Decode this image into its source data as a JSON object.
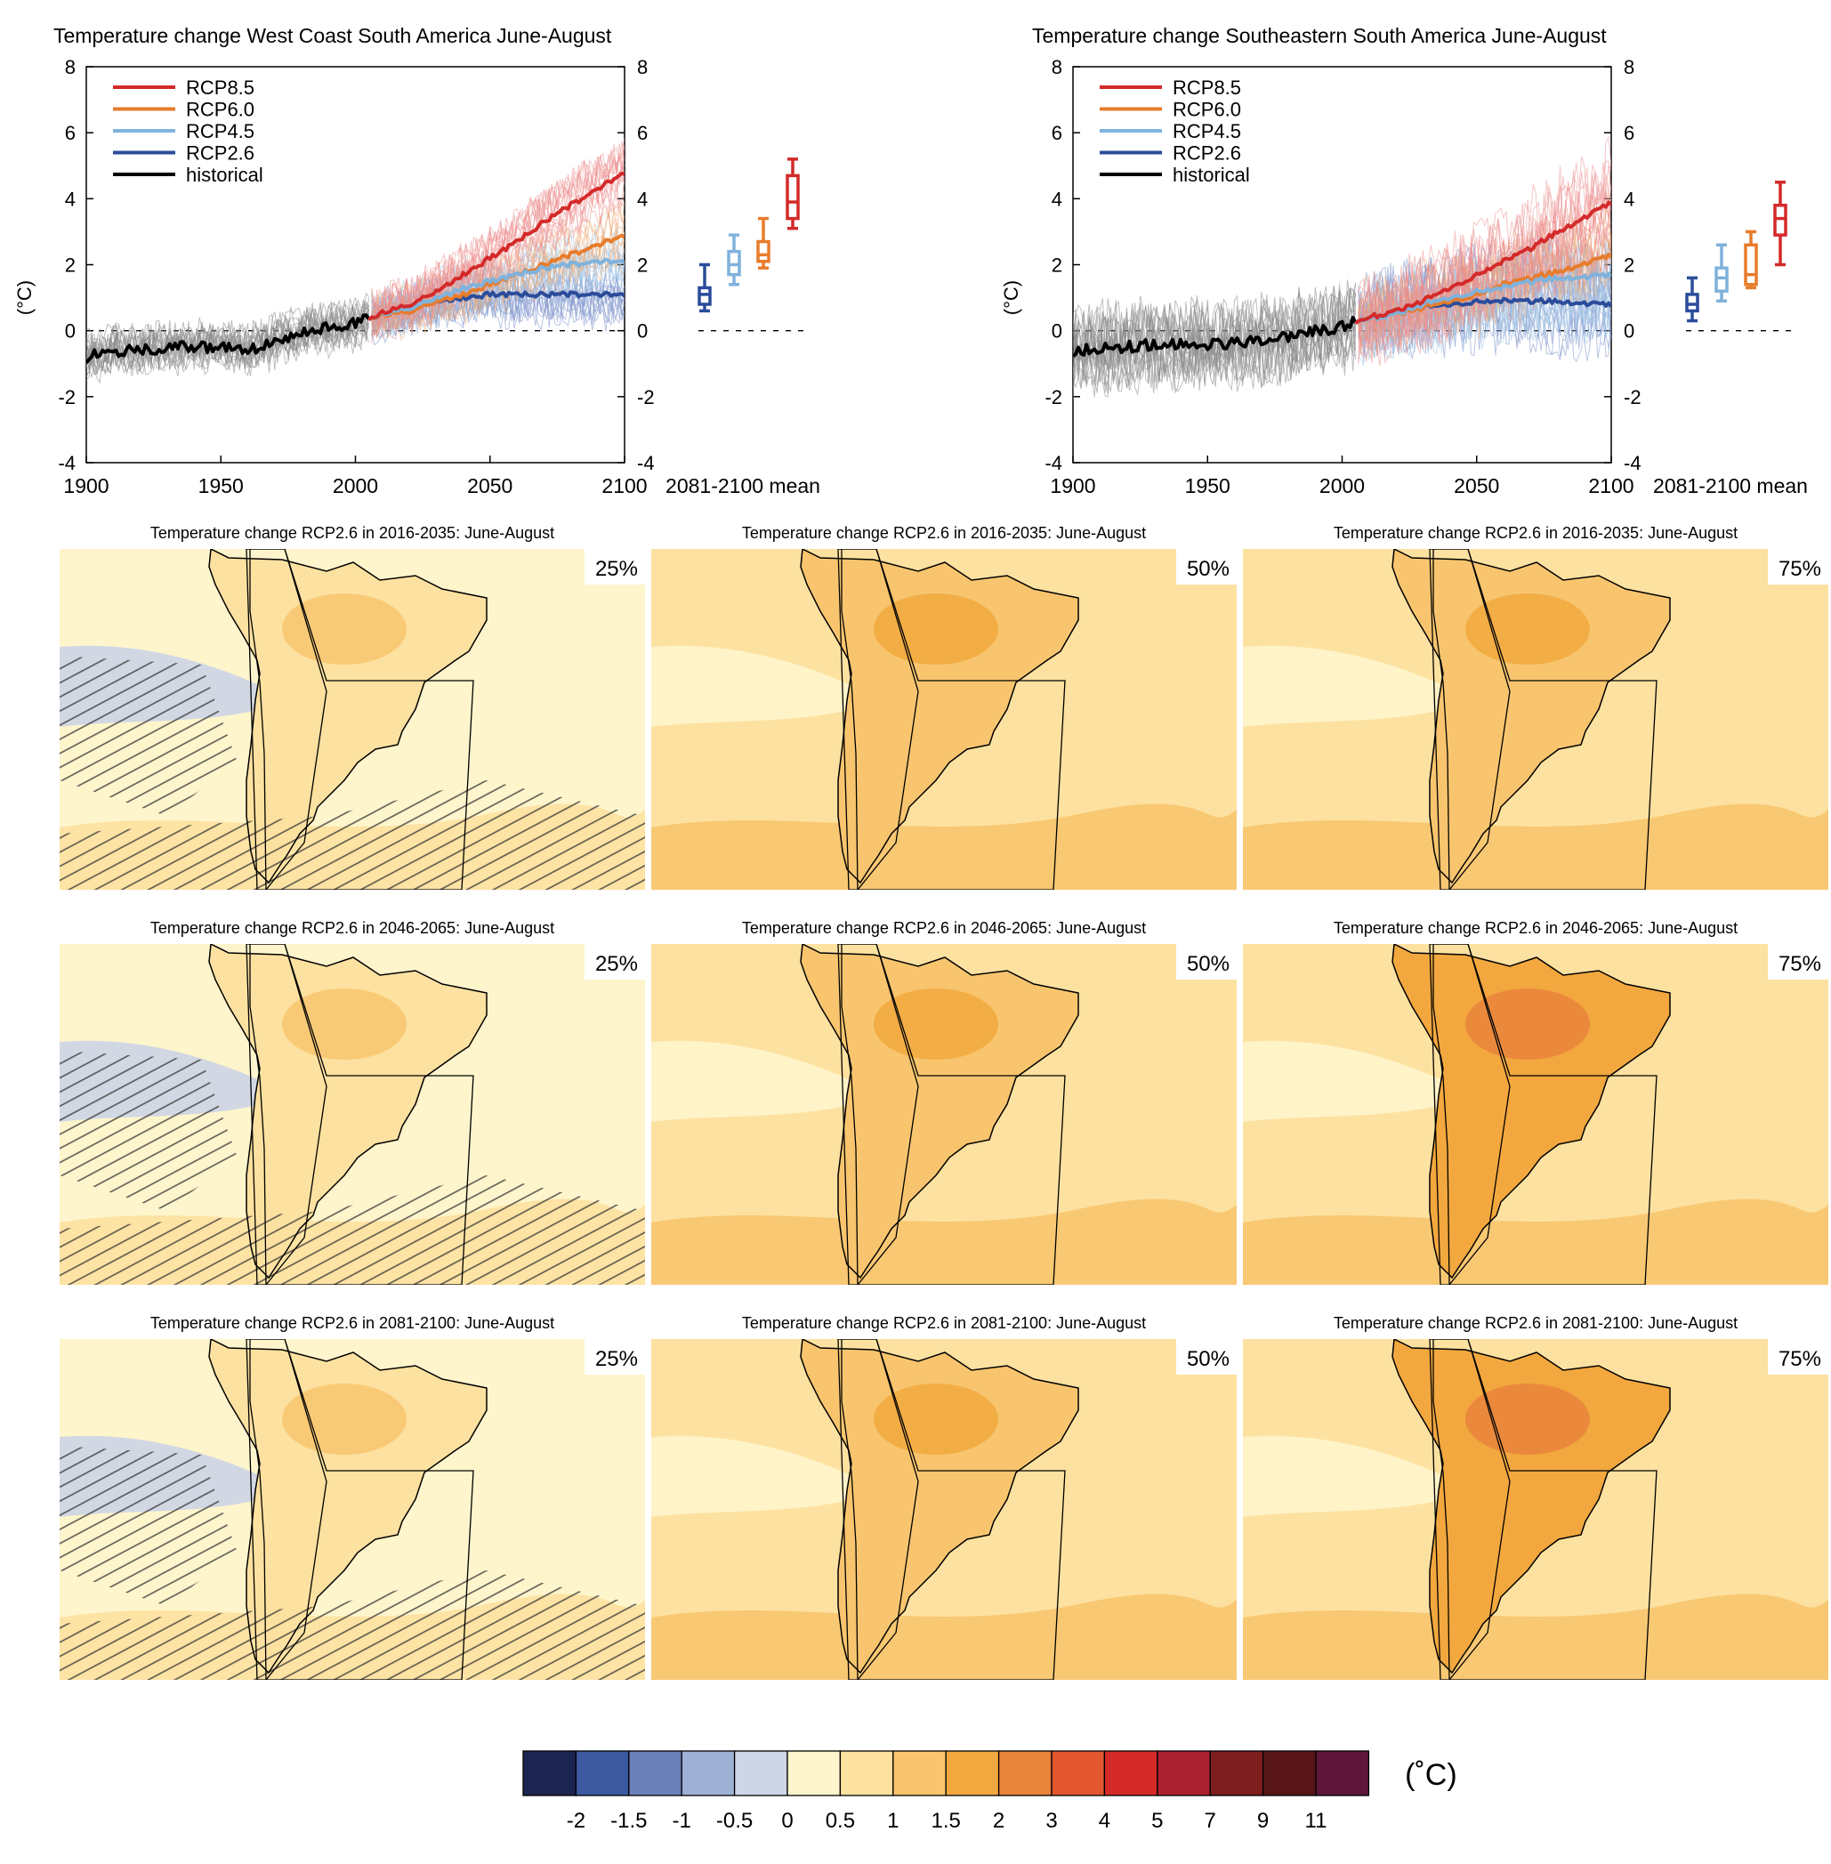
{
  "chart_data": [
    {
      "type": "line",
      "title": "Temperature change West Coast South America June-August",
      "ylabel": "(°C)",
      "xlim": [
        1900,
        2100
      ],
      "ylim": [
        -4,
        8
      ],
      "xticks": [
        "1900",
        "1950",
        "2000",
        "2050",
        "2100"
      ],
      "yticks": [
        "-4",
        "-2",
        "0",
        "2",
        "4",
        "6",
        "8"
      ],
      "legend_position": "top-left",
      "legend": [
        "RCP8.5",
        "RCP6.0",
        "RCP4.5",
        "RCP2.6",
        "historical"
      ],
      "series": [
        {
          "name": "historical",
          "color": "#000000",
          "x": [
            1900,
            1910,
            1920,
            1930,
            1940,
            1950,
            1960,
            1970,
            1980,
            1990,
            2000,
            2005
          ],
          "y": [
            -0.8,
            -0.6,
            -0.6,
            -0.5,
            -0.5,
            -0.5,
            -0.6,
            -0.3,
            -0.1,
            0.1,
            0.2,
            0.4
          ]
        },
        {
          "name": "RCP8.5",
          "color": "#d42a2a",
          "x": [
            2005,
            2020,
            2030,
            2040,
            2050,
            2060,
            2070,
            2080,
            2090,
            2100
          ],
          "y": [
            0.4,
            0.8,
            1.2,
            1.7,
            2.2,
            2.7,
            3.3,
            3.8,
            4.3,
            4.8
          ]
        },
        {
          "name": "RCP6.0",
          "color": "#e77c2c",
          "x": [
            2005,
            2020,
            2030,
            2040,
            2050,
            2060,
            2070,
            2080,
            2090,
            2100
          ],
          "y": [
            0.4,
            0.6,
            0.9,
            1.1,
            1.4,
            1.7,
            2.0,
            2.3,
            2.6,
            2.9
          ]
        },
        {
          "name": "RCP4.5",
          "color": "#7fb2dc",
          "x": [
            2005,
            2020,
            2030,
            2040,
            2050,
            2060,
            2070,
            2080,
            2090,
            2100
          ],
          "y": [
            0.4,
            0.7,
            1.0,
            1.3,
            1.5,
            1.7,
            1.9,
            2.0,
            2.1,
            2.1
          ]
        },
        {
          "name": "RCP2.6",
          "color": "#2b4c9a",
          "x": [
            2005,
            2020,
            2030,
            2040,
            2050,
            2060,
            2070,
            2080,
            2090,
            2100
          ],
          "y": [
            0.4,
            0.7,
            0.9,
            1.0,
            1.1,
            1.1,
            1.1,
            1.1,
            1.1,
            1.1
          ]
        }
      ],
      "boxplot_label": "2081-2100 mean",
      "boxplots": [
        {
          "name": "RCP2.6",
          "color": "#2b4c9a",
          "min": 0.6,
          "q1": 0.8,
          "median": 1.1,
          "q3": 1.3,
          "max": 2.0
        },
        {
          "name": "RCP4.5",
          "color": "#7fb2dc",
          "min": 1.4,
          "q1": 1.7,
          "median": 2.0,
          "q3": 2.4,
          "max": 2.9
        },
        {
          "name": "RCP6.0",
          "color": "#e77c2c",
          "min": 1.9,
          "q1": 2.1,
          "median": 2.3,
          "q3": 2.7,
          "max": 3.4
        },
        {
          "name": "RCP8.5",
          "color": "#d42a2a",
          "min": 3.1,
          "q1": 3.4,
          "median": 3.9,
          "q3": 4.7,
          "max": 5.2
        }
      ]
    },
    {
      "type": "line",
      "title": "Temperature change Southeastern South America June-August",
      "ylabel": "(°C)",
      "xlim": [
        1900,
        2100
      ],
      "ylim": [
        -4,
        8
      ],
      "xticks": [
        "1900",
        "1950",
        "2000",
        "2050",
        "2100"
      ],
      "yticks": [
        "-4",
        "-2",
        "0",
        "2",
        "4",
        "6",
        "8"
      ],
      "legend_position": "top-left",
      "legend": [
        "RCP8.5",
        "RCP6.0",
        "RCP4.5",
        "RCP2.6",
        "historical"
      ],
      "series": [
        {
          "name": "historical",
          "color": "#000000",
          "x": [
            1900,
            1910,
            1920,
            1930,
            1940,
            1950,
            1960,
            1970,
            1980,
            1990,
            2000,
            2005
          ],
          "y": [
            -0.6,
            -0.5,
            -0.5,
            -0.4,
            -0.4,
            -0.4,
            -0.4,
            -0.3,
            -0.2,
            0.0,
            0.1,
            0.3
          ]
        },
        {
          "name": "RCP8.5",
          "color": "#d42a2a",
          "x": [
            2005,
            2020,
            2030,
            2040,
            2050,
            2060,
            2070,
            2080,
            2090,
            2100
          ],
          "y": [
            0.3,
            0.6,
            0.9,
            1.3,
            1.7,
            2.1,
            2.5,
            3.0,
            3.4,
            3.9
          ]
        },
        {
          "name": "RCP6.0",
          "color": "#e77c2c",
          "x": [
            2005,
            2020,
            2030,
            2040,
            2050,
            2060,
            2070,
            2080,
            2090,
            2100
          ],
          "y": [
            0.3,
            0.5,
            0.7,
            0.9,
            1.1,
            1.4,
            1.6,
            1.8,
            2.0,
            2.3
          ]
        },
        {
          "name": "RCP4.5",
          "color": "#7fb2dc",
          "x": [
            2005,
            2020,
            2030,
            2040,
            2050,
            2060,
            2070,
            2080,
            2090,
            2100
          ],
          "y": [
            0.3,
            0.5,
            0.8,
            1.0,
            1.2,
            1.3,
            1.5,
            1.6,
            1.6,
            1.7
          ]
        },
        {
          "name": "RCP2.6",
          "color": "#2b4c9a",
          "x": [
            2005,
            2020,
            2030,
            2040,
            2050,
            2060,
            2070,
            2080,
            2090,
            2100
          ],
          "y": [
            0.3,
            0.6,
            0.7,
            0.8,
            0.9,
            0.9,
            0.9,
            0.9,
            0.8,
            0.8
          ]
        }
      ],
      "boxplot_label": "2081-2100 mean",
      "boxplots": [
        {
          "name": "RCP2.6",
          "color": "#2b4c9a",
          "min": 0.3,
          "q1": 0.6,
          "median": 0.8,
          "q3": 1.1,
          "max": 1.6
        },
        {
          "name": "RCP4.5",
          "color": "#7fb2dc",
          "min": 0.9,
          "q1": 1.2,
          "median": 1.6,
          "q3": 1.9,
          "max": 2.6
        },
        {
          "name": "RCP6.0",
          "color": "#e77c2c",
          "min": 1.3,
          "q1": 1.4,
          "median": 1.7,
          "q3": 2.6,
          "max": 3.0
        },
        {
          "name": "RCP8.5",
          "color": "#d42a2a",
          "min": 2.0,
          "q1": 2.9,
          "median": 3.4,
          "q3": 3.8,
          "max": 4.5
        }
      ]
    },
    {
      "type": "heatmap",
      "maps": [
        {
          "title": "Temperature change RCP2.6 in 2016-2035: June-August",
          "percentile": "25%",
          "ocean_level": 0.25,
          "land_level": 0.75,
          "hatched": true
        },
        {
          "title": "Temperature change RCP2.6 in 2016-2035: June-August",
          "percentile": "50%",
          "ocean_level": 0.75,
          "land_level": 1.25,
          "hatched": false
        },
        {
          "title": "Temperature change RCP2.6 in 2016-2035: June-August",
          "percentile": "75%",
          "ocean_level": 0.75,
          "land_level": 1.25,
          "hatched": false
        },
        {
          "title": "Temperature change RCP2.6 in 2046-2065: June-August",
          "percentile": "25%",
          "ocean_level": 0.25,
          "land_level": 0.75,
          "hatched": true
        },
        {
          "title": "Temperature change RCP2.6 in 2046-2065: June-August",
          "percentile": "50%",
          "ocean_level": 0.75,
          "land_level": 1.25,
          "hatched": false
        },
        {
          "title": "Temperature change RCP2.6 in 2046-2065: June-August",
          "percentile": "75%",
          "ocean_level": 0.75,
          "land_level": 1.75,
          "hatched": false
        },
        {
          "title": "Temperature change RCP2.6 in 2081-2100: June-August",
          "percentile": "25%",
          "ocean_level": 0.25,
          "land_level": 0.75,
          "hatched": true
        },
        {
          "title": "Temperature change RCP2.6 in 2081-2100: June-August",
          "percentile": "50%",
          "ocean_level": 0.75,
          "land_level": 1.25,
          "hatched": false
        },
        {
          "title": "Temperature change RCP2.6 in 2081-2100: June-August",
          "percentile": "75%",
          "ocean_level": 0.75,
          "land_level": 1.75,
          "hatched": false
        }
      ],
      "colorbar": {
        "unit": "(˚C)",
        "tick_labels": [
          "-2",
          "-1.5",
          "-1",
          "-0.5",
          "0",
          "0.5",
          "1",
          "1.5",
          "2",
          "3",
          "4",
          "5",
          "7",
          "9",
          "11"
        ],
        "colors": [
          "#1c2450",
          "#3c59a0",
          "#6b80b8",
          "#9eb0d4",
          "#cdd5e6",
          "#fff5cc",
          "#fde1a0",
          "#f8c56e",
          "#f2a83e",
          "#e9843c",
          "#e2572e",
          "#d42a2a",
          "#ab2030",
          "#7d1e1e",
          "#571518",
          "#5e1538"
        ]
      }
    }
  ]
}
